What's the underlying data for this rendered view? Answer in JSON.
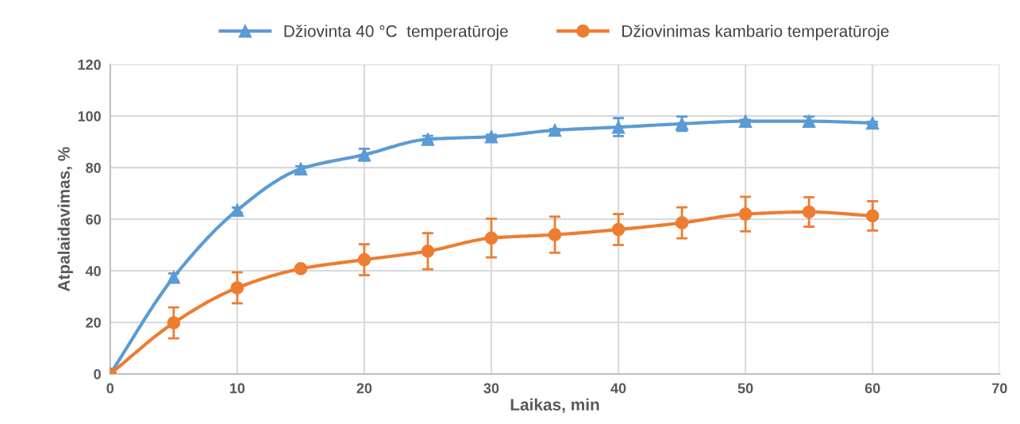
{
  "chart_data": {
    "type": "line",
    "xlabel": "Laikas, min",
    "ylabel": "Atpalaidavimas, %",
    "x": [
      0,
      5,
      10,
      15,
      20,
      25,
      30,
      35,
      40,
      45,
      50,
      55,
      60
    ],
    "series": [
      {
        "name": "Džiovinta 40 °C  temperatūroje",
        "color": "#5b9bd5",
        "marker": "triangle",
        "values": [
          0,
          37.5,
          63.5,
          79.5,
          85,
          91,
          92,
          94.5,
          95.7,
          97,
          98,
          98,
          97.3
        ],
        "errors": [
          null,
          1.5,
          1,
          1,
          2.3,
          1.3,
          0.8,
          0.5,
          3.5,
          2.8,
          0.5,
          1.8,
          0.5
        ]
      },
      {
        "name": "Džiovinimas kambario temperatūroje",
        "color": "#ed7d31",
        "marker": "circle",
        "values": [
          0,
          19.8,
          33.4,
          40.8,
          44.3,
          47.6,
          52.7,
          54,
          56,
          58.6,
          62,
          62.8,
          61.3
        ],
        "errors": [
          null,
          6,
          6,
          1,
          6,
          7,
          7.5,
          7,
          6,
          6,
          6.7,
          5.7,
          5.7
        ]
      }
    ],
    "xlim": [
      0,
      70
    ],
    "xticks": [
      0,
      10,
      20,
      30,
      40,
      50,
      60,
      70
    ],
    "ylim": [
      0,
      120
    ],
    "yticks": [
      0,
      20,
      40,
      60,
      80,
      100,
      120
    ],
    "grid": true,
    "legend": "top",
    "line_style": "solid"
  }
}
